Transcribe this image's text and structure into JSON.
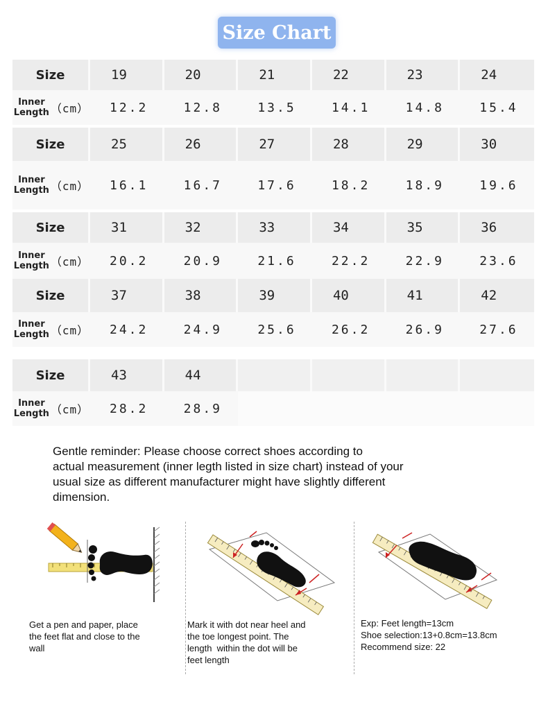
{
  "title": "Size Chart",
  "size_label": "Size",
  "length_label": {
    "line1": "Inner",
    "line2": "Length",
    "unit": "（cm）"
  },
  "rows": [
    {
      "sizes": [
        "19",
        "20",
        "21",
        "22",
        "23",
        "24"
      ],
      "lengths": [
        "12.2",
        "12.8",
        "13.5",
        "14.1",
        "14.8",
        "15.4"
      ]
    },
    {
      "sizes": [
        "25",
        "26",
        "27",
        "28",
        "29",
        "30"
      ],
      "lengths": [
        "16.1",
        "16.7",
        "17.6",
        "18.2",
        "18.9",
        "19.6"
      ]
    },
    {
      "sizes": [
        "31",
        "32",
        "33",
        "34",
        "35",
        "36"
      ],
      "lengths": [
        "20.2",
        "20.9",
        "21.6",
        "22.2",
        "22.9",
        "23.6"
      ]
    },
    {
      "sizes": [
        "37",
        "38",
        "39",
        "40",
        "41",
        "42"
      ],
      "lengths": [
        "24.2",
        "24.9",
        "25.6",
        "26.2",
        "26.9",
        "27.6"
      ]
    },
    {
      "sizes": [
        "43",
        "44",
        "",
        "",
        "",
        ""
      ],
      "lengths": [
        "28.2",
        "28.9",
        "",
        "",
        "",
        ""
      ]
    }
  ],
  "reminder": [
    "Gentle reminder: Please choose correct shoes according to",
    "actual measurement (inner legth listed in size chart) instead of your",
    "usual size as different manufacturer might have slightly different",
    "dimension."
  ],
  "steps": [
    {
      "lines": [
        "Get a pen and paper, place",
        "the feet flat and close to the",
        "wall"
      ]
    },
    {
      "lines": [
        "Mark it with dot near heel and",
        "the toe longest point. The",
        "length  within the dot will be",
        "feet length"
      ]
    },
    {
      "lines": [
        "Exp: Feet length=13cm",
        "Shoe selection:13+0.8cm=13.8cm",
        "Recommend size: 22"
      ]
    }
  ],
  "icons": {
    "step1": "foot-and-pencil-icon",
    "step2": "footprint-ruler-icon",
    "step3": "insole-ruler-icon"
  },
  "colors": {
    "title_bg": "#8fb4ee",
    "size_row_bg": "#ececec",
    "ruler": "#f2e07a",
    "arrow": "#cc2222"
  }
}
